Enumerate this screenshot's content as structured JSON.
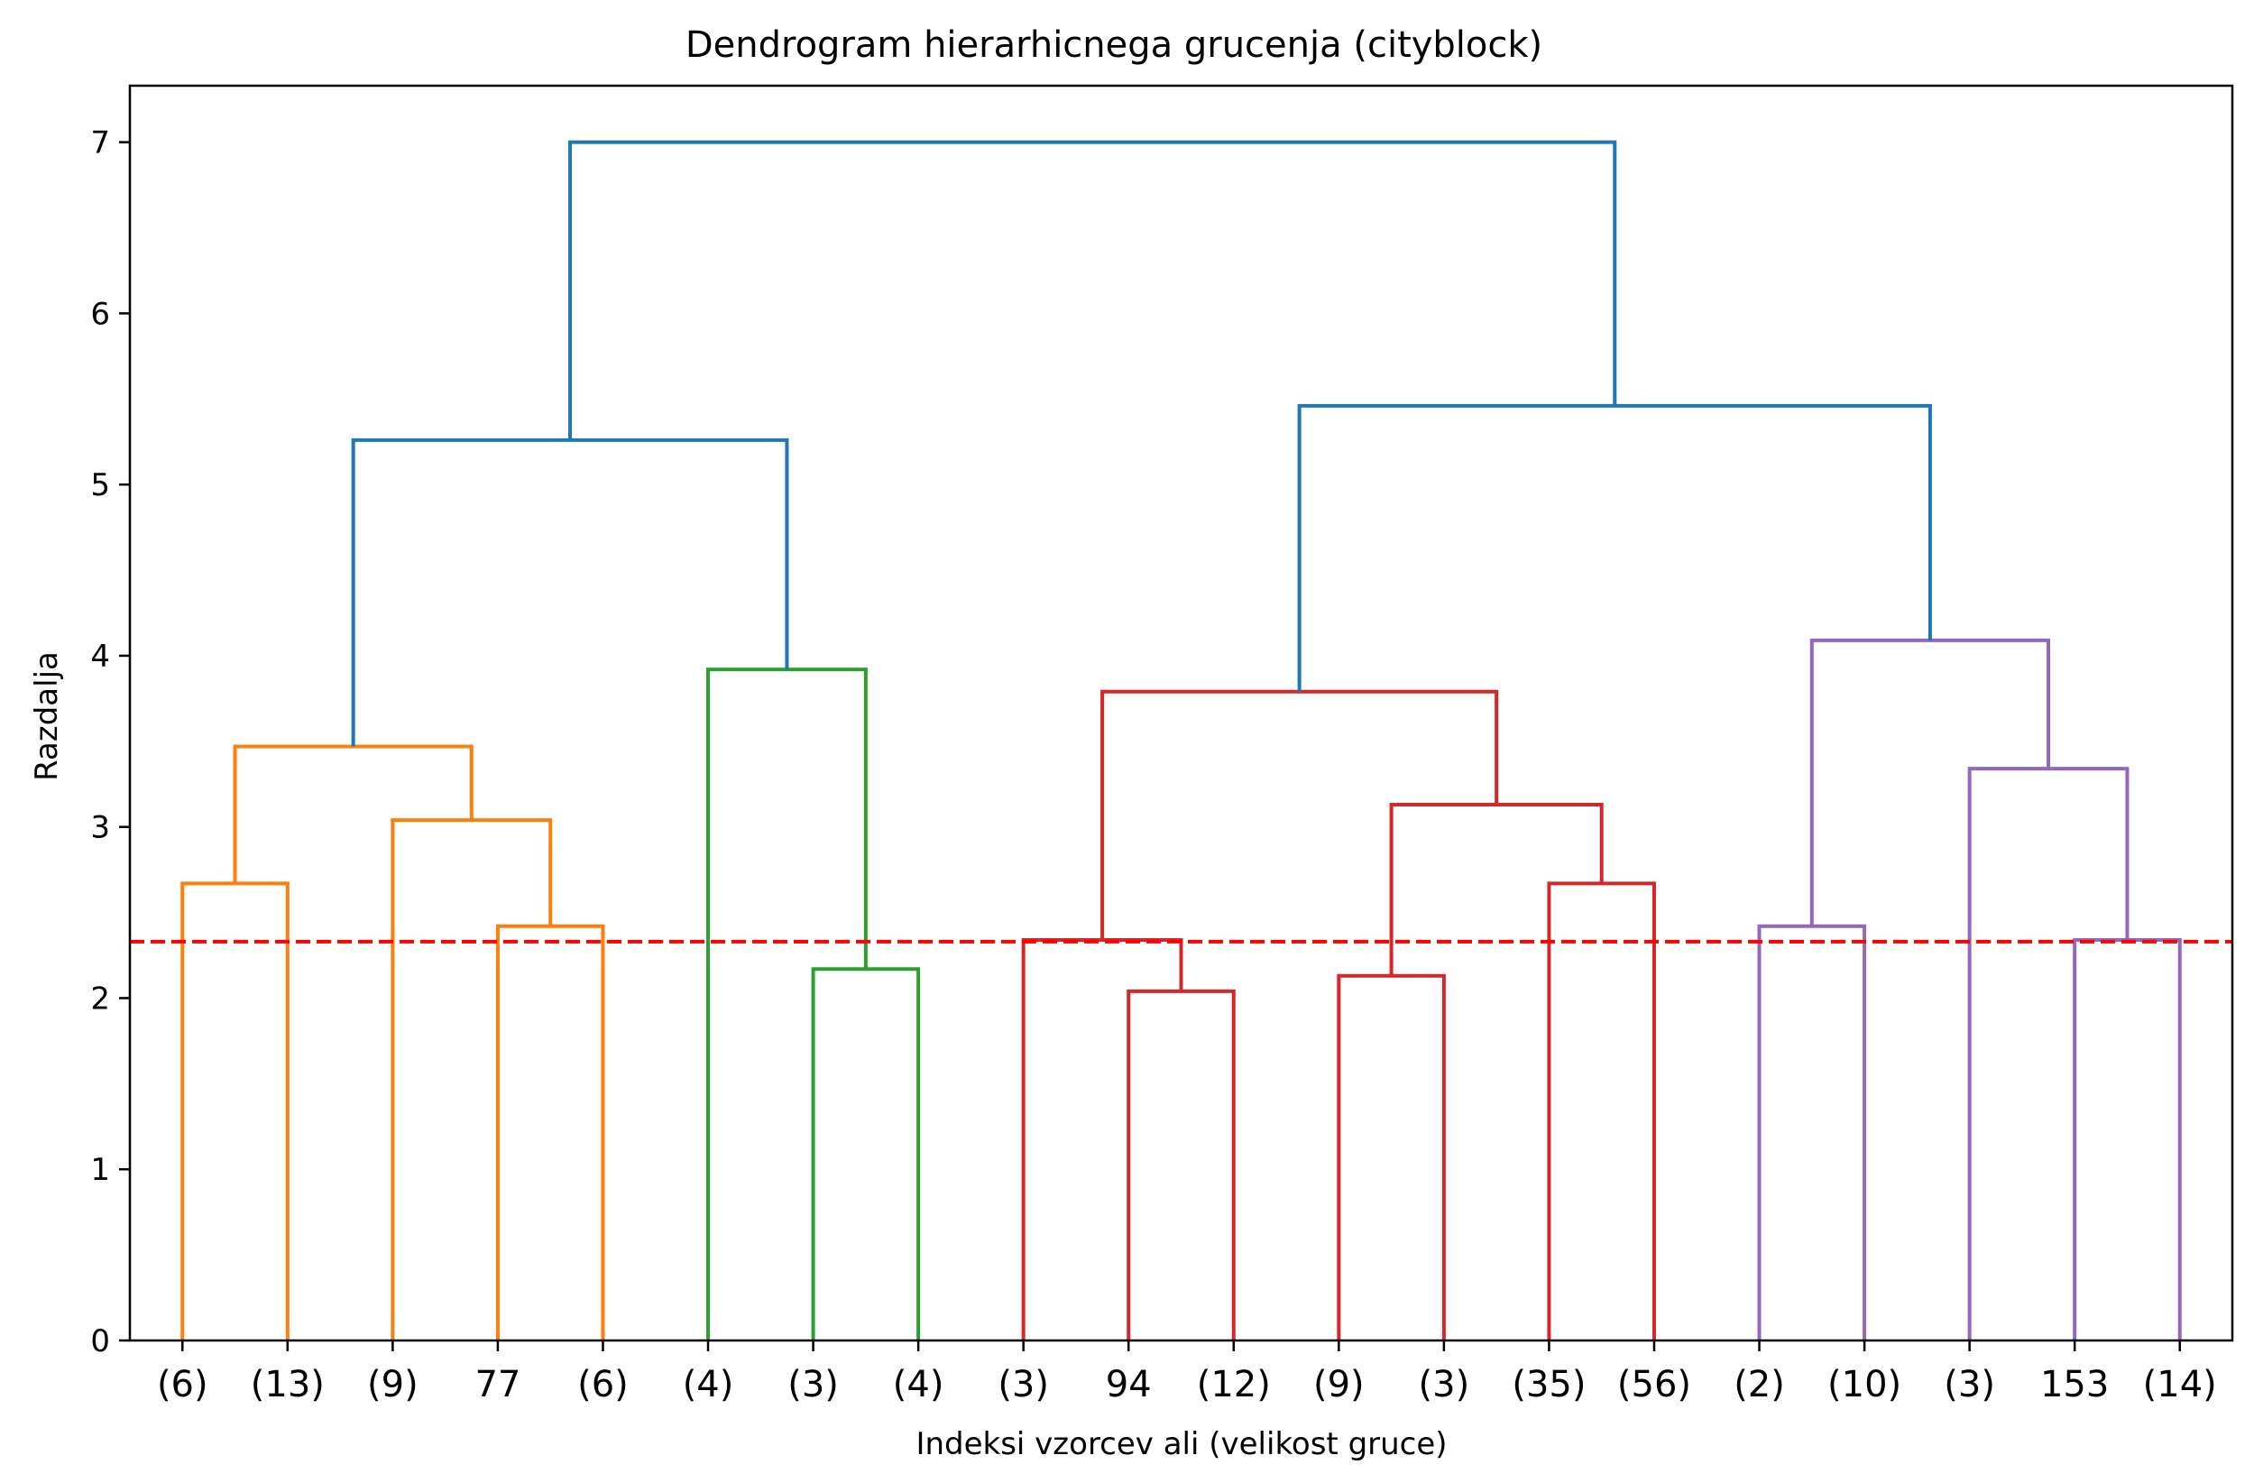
{
  "chart_data": {
    "type": "dendrogram",
    "title": "Dendrogram hierarhicnega grucenja (cityblock)",
    "xlabel": "Indeksi vzorcev ali (velikost gruce)",
    "ylabel": "Razdalja",
    "ylim": [
      0,
      7.33
    ],
    "yticks": [
      0,
      1,
      2,
      3,
      4,
      5,
      6,
      7
    ],
    "grid": false,
    "leaves": [
      "(6)",
      "(13)",
      "(9)",
      "77",
      "(6)",
      "(4)",
      "(3)",
      "(4)",
      "(3)",
      "94",
      "(12)",
      "(9)",
      "(3)",
      "(35)",
      "(56)",
      "(2)",
      "(10)",
      "(3)",
      "153",
      "(14)"
    ],
    "threshold": {
      "value": 2.33,
      "color": "#ff0000",
      "style": "dashed"
    },
    "links": [
      {
        "x": [
          0,
          0,
          1,
          1
        ],
        "y": [
          0,
          2.67,
          2.67,
          0
        ],
        "color": "#ff7f0e"
      },
      {
        "x": [
          3,
          3,
          4,
          4
        ],
        "y": [
          0,
          2.42,
          2.42,
          0
        ],
        "color": "#ff7f0e"
      },
      {
        "x": [
          2,
          2,
          3.5,
          3.5
        ],
        "y": [
          0,
          3.04,
          3.04,
          2.42
        ],
        "color": "#ff7f0e"
      },
      {
        "x": [
          0.5,
          0.5,
          2.75,
          2.75
        ],
        "y": [
          2.67,
          3.47,
          3.47,
          3.04
        ],
        "color": "#ff7f0e"
      },
      {
        "x": [
          6,
          6,
          7,
          7
        ],
        "y": [
          0,
          2.17,
          2.17,
          0
        ],
        "color": "#2ca02c"
      },
      {
        "x": [
          5,
          5,
          6.5,
          6.5
        ],
        "y": [
          0,
          3.92,
          3.92,
          2.17
        ],
        "color": "#2ca02c"
      },
      {
        "x": [
          1.625,
          1.625,
          5.75,
          5.75
        ],
        "y": [
          3.47,
          5.26,
          5.26,
          3.92
        ],
        "color": "#1f77b4"
      },
      {
        "x": [
          9,
          9,
          10,
          10
        ],
        "y": [
          0,
          2.04,
          2.04,
          0
        ],
        "color": "#d62728"
      },
      {
        "x": [
          8,
          8,
          9.5,
          9.5
        ],
        "y": [
          0,
          2.34,
          2.34,
          2.04
        ],
        "color": "#d62728"
      },
      {
        "x": [
          11,
          11,
          12,
          12
        ],
        "y": [
          0,
          2.13,
          2.13,
          0
        ],
        "color": "#d62728"
      },
      {
        "x": [
          13,
          13,
          14,
          14
        ],
        "y": [
          0,
          2.67,
          2.67,
          0
        ],
        "color": "#d62728"
      },
      {
        "x": [
          11.5,
          11.5,
          13.5,
          13.5
        ],
        "y": [
          2.13,
          3.13,
          3.13,
          2.67
        ],
        "color": "#d62728"
      },
      {
        "x": [
          8.75,
          8.75,
          12.5,
          12.5
        ],
        "y": [
          2.34,
          3.79,
          3.79,
          3.13
        ],
        "color": "#d62728"
      },
      {
        "x": [
          15,
          15,
          16,
          16
        ],
        "y": [
          0,
          2.42,
          2.42,
          0
        ],
        "color": "#9467bd"
      },
      {
        "x": [
          18,
          18,
          19,
          19
        ],
        "y": [
          0,
          2.34,
          2.34,
          0
        ],
        "color": "#9467bd"
      },
      {
        "x": [
          17,
          17,
          18.5,
          18.5
        ],
        "y": [
          0,
          3.34,
          3.34,
          2.34
        ],
        "color": "#9467bd"
      },
      {
        "x": [
          15.5,
          15.5,
          17.75,
          17.75
        ],
        "y": [
          2.42,
          4.09,
          4.09,
          3.34
        ],
        "color": "#9467bd"
      },
      {
        "x": [
          10.625,
          10.625,
          16.625,
          16.625
        ],
        "y": [
          3.79,
          5.46,
          5.46,
          4.09
        ],
        "color": "#1f77b4"
      },
      {
        "x": [
          3.6875,
          3.6875,
          13.625,
          13.625
        ],
        "y": [
          5.26,
          7.0,
          7.0,
          5.46
        ],
        "color": "#1f77b4"
      }
    ]
  }
}
